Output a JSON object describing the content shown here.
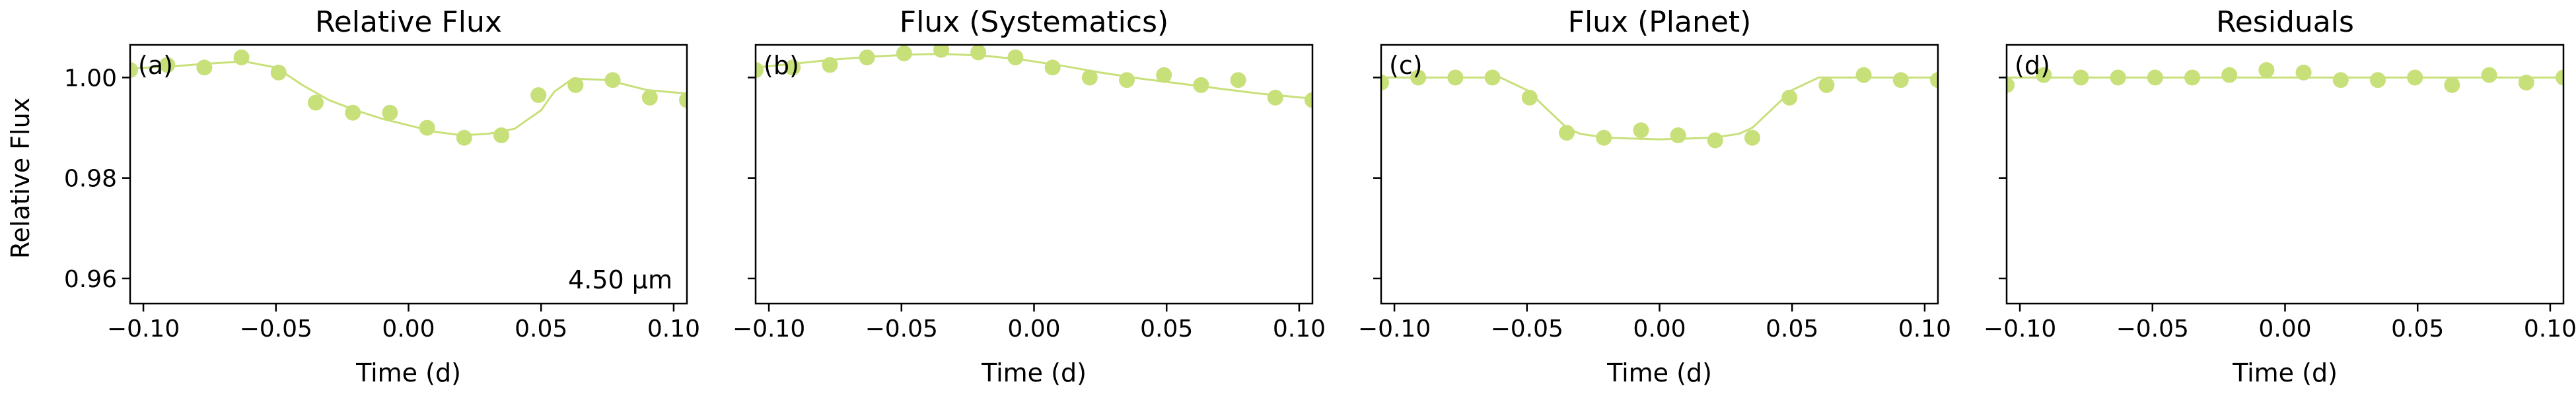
{
  "figure": {
    "ylabel": "Relative Flux",
    "wavelength_label": "4.50 μm"
  },
  "colors": {
    "series": "#c8e07a",
    "wavelength_text": "#b8d845",
    "axes": "#000000"
  },
  "chart_data": [
    {
      "type": "scatter",
      "title": "Relative Flux",
      "panel_label": "(a)",
      "xlabel": "Time (d)",
      "ylabel": "Relative Flux",
      "xlim": [
        -0.105,
        0.105
      ],
      "ylim": [
        0.955,
        1.0065
      ],
      "xticks": [
        -0.1,
        -0.05,
        0.0,
        0.05,
        0.1
      ],
      "xtick_labels": [
        "−0.10",
        "−0.05",
        "0.00",
        "0.05",
        "0.10"
      ],
      "yticks": [
        0.96,
        0.98,
        1.0
      ],
      "ytick_labels": [
        "0.96",
        "0.98",
        "1.00"
      ],
      "grid": false,
      "points": {
        "x": [
          -0.105,
          -0.091,
          -0.077,
          -0.063,
          -0.049,
          -0.035,
          -0.021,
          -0.007,
          0.007,
          0.021,
          0.035,
          0.049,
          0.063,
          0.077,
          0.091,
          0.105
        ],
        "y": [
          1.0015,
          1.0025,
          1.002,
          1.004,
          1.001,
          0.995,
          0.993,
          0.993,
          0.99,
          0.988,
          0.9885,
          0.9965,
          0.9985,
          0.9995,
          0.996,
          0.9955
        ]
      },
      "model": {
        "x": [
          -0.105,
          -0.09,
          -0.075,
          -0.062,
          -0.05,
          -0.04,
          -0.03,
          -0.02,
          -0.01,
          0.0,
          0.01,
          0.02,
          0.03,
          0.04,
          0.05,
          0.055,
          0.062,
          0.075,
          0.09,
          0.105
        ],
        "y": [
          1.0018,
          1.0022,
          1.0028,
          1.0032,
          1.002,
          0.9985,
          0.9955,
          0.9935,
          0.9918,
          0.9905,
          0.9892,
          0.9885,
          0.9888,
          0.9898,
          0.9935,
          0.9972,
          0.9998,
          0.9995,
          0.9975,
          0.9968
        ]
      }
    },
    {
      "type": "scatter",
      "title": "Flux (Systematics)",
      "panel_label": "(b)",
      "xlabel": "Time (d)",
      "xlim": [
        -0.105,
        0.105
      ],
      "ylim": [
        0.955,
        1.0065
      ],
      "xticks": [
        -0.1,
        -0.05,
        0.0,
        0.05,
        0.1
      ],
      "xtick_labels": [
        "−0.10",
        "−0.05",
        "0.00",
        "0.05",
        "0.10"
      ],
      "yticks": [
        0.96,
        0.98,
        1.0
      ],
      "ytick_labels": [
        "",
        "",
        ""
      ],
      "grid": false,
      "points": {
        "x": [
          -0.105,
          -0.091,
          -0.077,
          -0.063,
          -0.049,
          -0.035,
          -0.021,
          -0.007,
          0.007,
          0.021,
          0.035,
          0.049,
          0.063,
          0.077,
          0.091,
          0.105
        ],
        "y": [
          1.0015,
          1.002,
          1.0025,
          1.004,
          1.0048,
          1.0055,
          1.005,
          1.004,
          1.002,
          1.0,
          0.9995,
          1.0005,
          0.9985,
          0.9995,
          0.996,
          0.9955
        ]
      },
      "model": {
        "x": [
          -0.105,
          -0.09,
          -0.075,
          -0.06,
          -0.045,
          -0.035,
          -0.02,
          -0.005,
          0.01,
          0.025,
          0.04,
          0.055,
          0.07,
          0.085,
          0.105
        ],
        "y": [
          1.002,
          1.0028,
          1.0036,
          1.0042,
          1.0046,
          1.0047,
          1.0044,
          1.0036,
          1.0024,
          1.001,
          0.9998,
          0.9988,
          0.9978,
          0.9968,
          0.9958
        ]
      }
    },
    {
      "type": "scatter",
      "title": "Flux (Planet)",
      "panel_label": "(c)",
      "xlabel": "Time (d)",
      "xlim": [
        -0.105,
        0.105
      ],
      "ylim": [
        0.955,
        1.0065
      ],
      "xticks": [
        -0.1,
        -0.05,
        0.0,
        0.05,
        0.1
      ],
      "xtick_labels": [
        "−0.10",
        "−0.05",
        "0.00",
        "0.05",
        "0.10"
      ],
      "yticks": [
        0.96,
        0.98,
        1.0
      ],
      "ytick_labels": [
        "",
        "",
        ""
      ],
      "grid": false,
      "points": {
        "x": [
          -0.105,
          -0.091,
          -0.077,
          -0.063,
          -0.049,
          -0.035,
          -0.021,
          -0.007,
          0.007,
          0.021,
          0.035,
          0.049,
          0.063,
          0.077,
          0.091,
          0.105
        ],
        "y": [
          0.999,
          1.0,
          1.0,
          1.0,
          0.996,
          0.989,
          0.988,
          0.9895,
          0.9885,
          0.9875,
          0.988,
          0.996,
          0.9985,
          1.0005,
          0.9995,
          0.9995
        ]
      },
      "model": {
        "x": [
          -0.105,
          -0.06,
          -0.05,
          -0.04,
          -0.035,
          -0.03,
          -0.02,
          0.0,
          0.02,
          0.03,
          0.035,
          0.04,
          0.05,
          0.06,
          0.105
        ],
        "y": [
          1.0,
          1.0,
          0.9975,
          0.9925,
          0.99,
          0.9888,
          0.988,
          0.9877,
          0.988,
          0.9888,
          0.99,
          0.9925,
          0.9975,
          1.0,
          1.0
        ]
      }
    },
    {
      "type": "scatter",
      "title": "Residuals",
      "panel_label": "(d)",
      "xlabel": "Time (d)",
      "xlim": [
        -0.105,
        0.105
      ],
      "ylim": [
        0.955,
        1.0065
      ],
      "xticks": [
        -0.1,
        -0.05,
        0.0,
        0.05,
        0.1
      ],
      "xtick_labels": [
        "−0.10",
        "−0.05",
        "0.00",
        "0.05",
        "0.10"
      ],
      "yticks": [
        0.96,
        0.98,
        1.0
      ],
      "ytick_labels": [
        "",
        "",
        ""
      ],
      "grid": false,
      "points": {
        "x": [
          -0.105,
          -0.091,
          -0.077,
          -0.063,
          -0.049,
          -0.035,
          -0.021,
          -0.007,
          0.007,
          0.021,
          0.035,
          0.049,
          0.063,
          0.077,
          0.091,
          0.105
        ],
        "y": [
          0.9985,
          1.0005,
          1.0,
          1.0,
          1.0,
          1.0,
          1.0005,
          1.0015,
          1.001,
          0.9995,
          0.9995,
          1.0,
          0.9985,
          1.0005,
          0.999,
          1.0
        ]
      },
      "model": {
        "x": [
          -0.105,
          0.105
        ],
        "y": [
          1.0,
          1.0
        ]
      }
    }
  ]
}
